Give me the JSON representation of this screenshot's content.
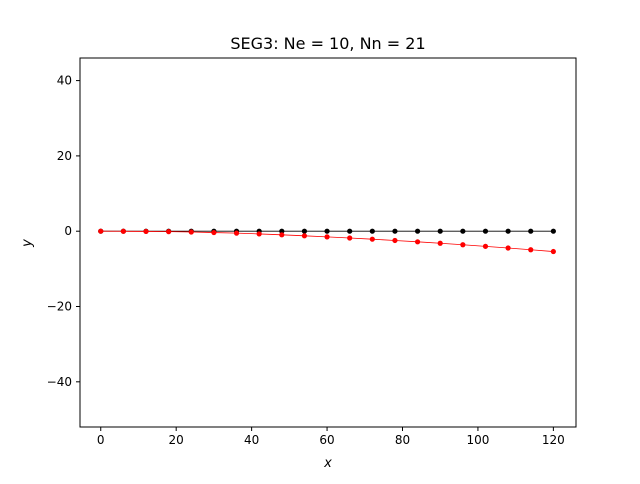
{
  "chart_data": {
    "type": "line",
    "title": "SEG3: Ne = 10, Nn = 21",
    "xlabel": "x",
    "ylabel": "y",
    "xlim": [
      -5.5,
      126
    ],
    "ylim": [
      -52,
      46
    ],
    "xticks": [
      0,
      20,
      40,
      60,
      80,
      100,
      120
    ],
    "yticks": [
      -40,
      -20,
      0,
      20,
      40
    ],
    "xtick_labels": [
      "0",
      "20",
      "40",
      "60",
      "80",
      "100",
      "120"
    ],
    "ytick_labels": [
      "−40",
      "−20",
      "0",
      "20",
      "40"
    ],
    "grid": false,
    "x": [
      0,
      6,
      12,
      18,
      24,
      30,
      36,
      42,
      48,
      54,
      60,
      66,
      72,
      78,
      84,
      90,
      96,
      102,
      108,
      114,
      120
    ],
    "series": [
      {
        "color": "#000000",
        "values": [
          0,
          0,
          0,
          0,
          0,
          0,
          0,
          0,
          0,
          0,
          0,
          0,
          0,
          0,
          0,
          0,
          0,
          0,
          0,
          0,
          0
        ]
      },
      {
        "color": "#ff0000",
        "values": [
          0,
          -0.02,
          -0.06,
          -0.12,
          -0.22,
          -0.36,
          -0.52,
          -0.72,
          -0.96,
          -1.22,
          -1.5,
          -1.8,
          -2.12,
          -2.46,
          -2.82,
          -3.2,
          -3.6,
          -4.02,
          -4.46,
          -4.92,
          -5.4
        ]
      }
    ]
  }
}
